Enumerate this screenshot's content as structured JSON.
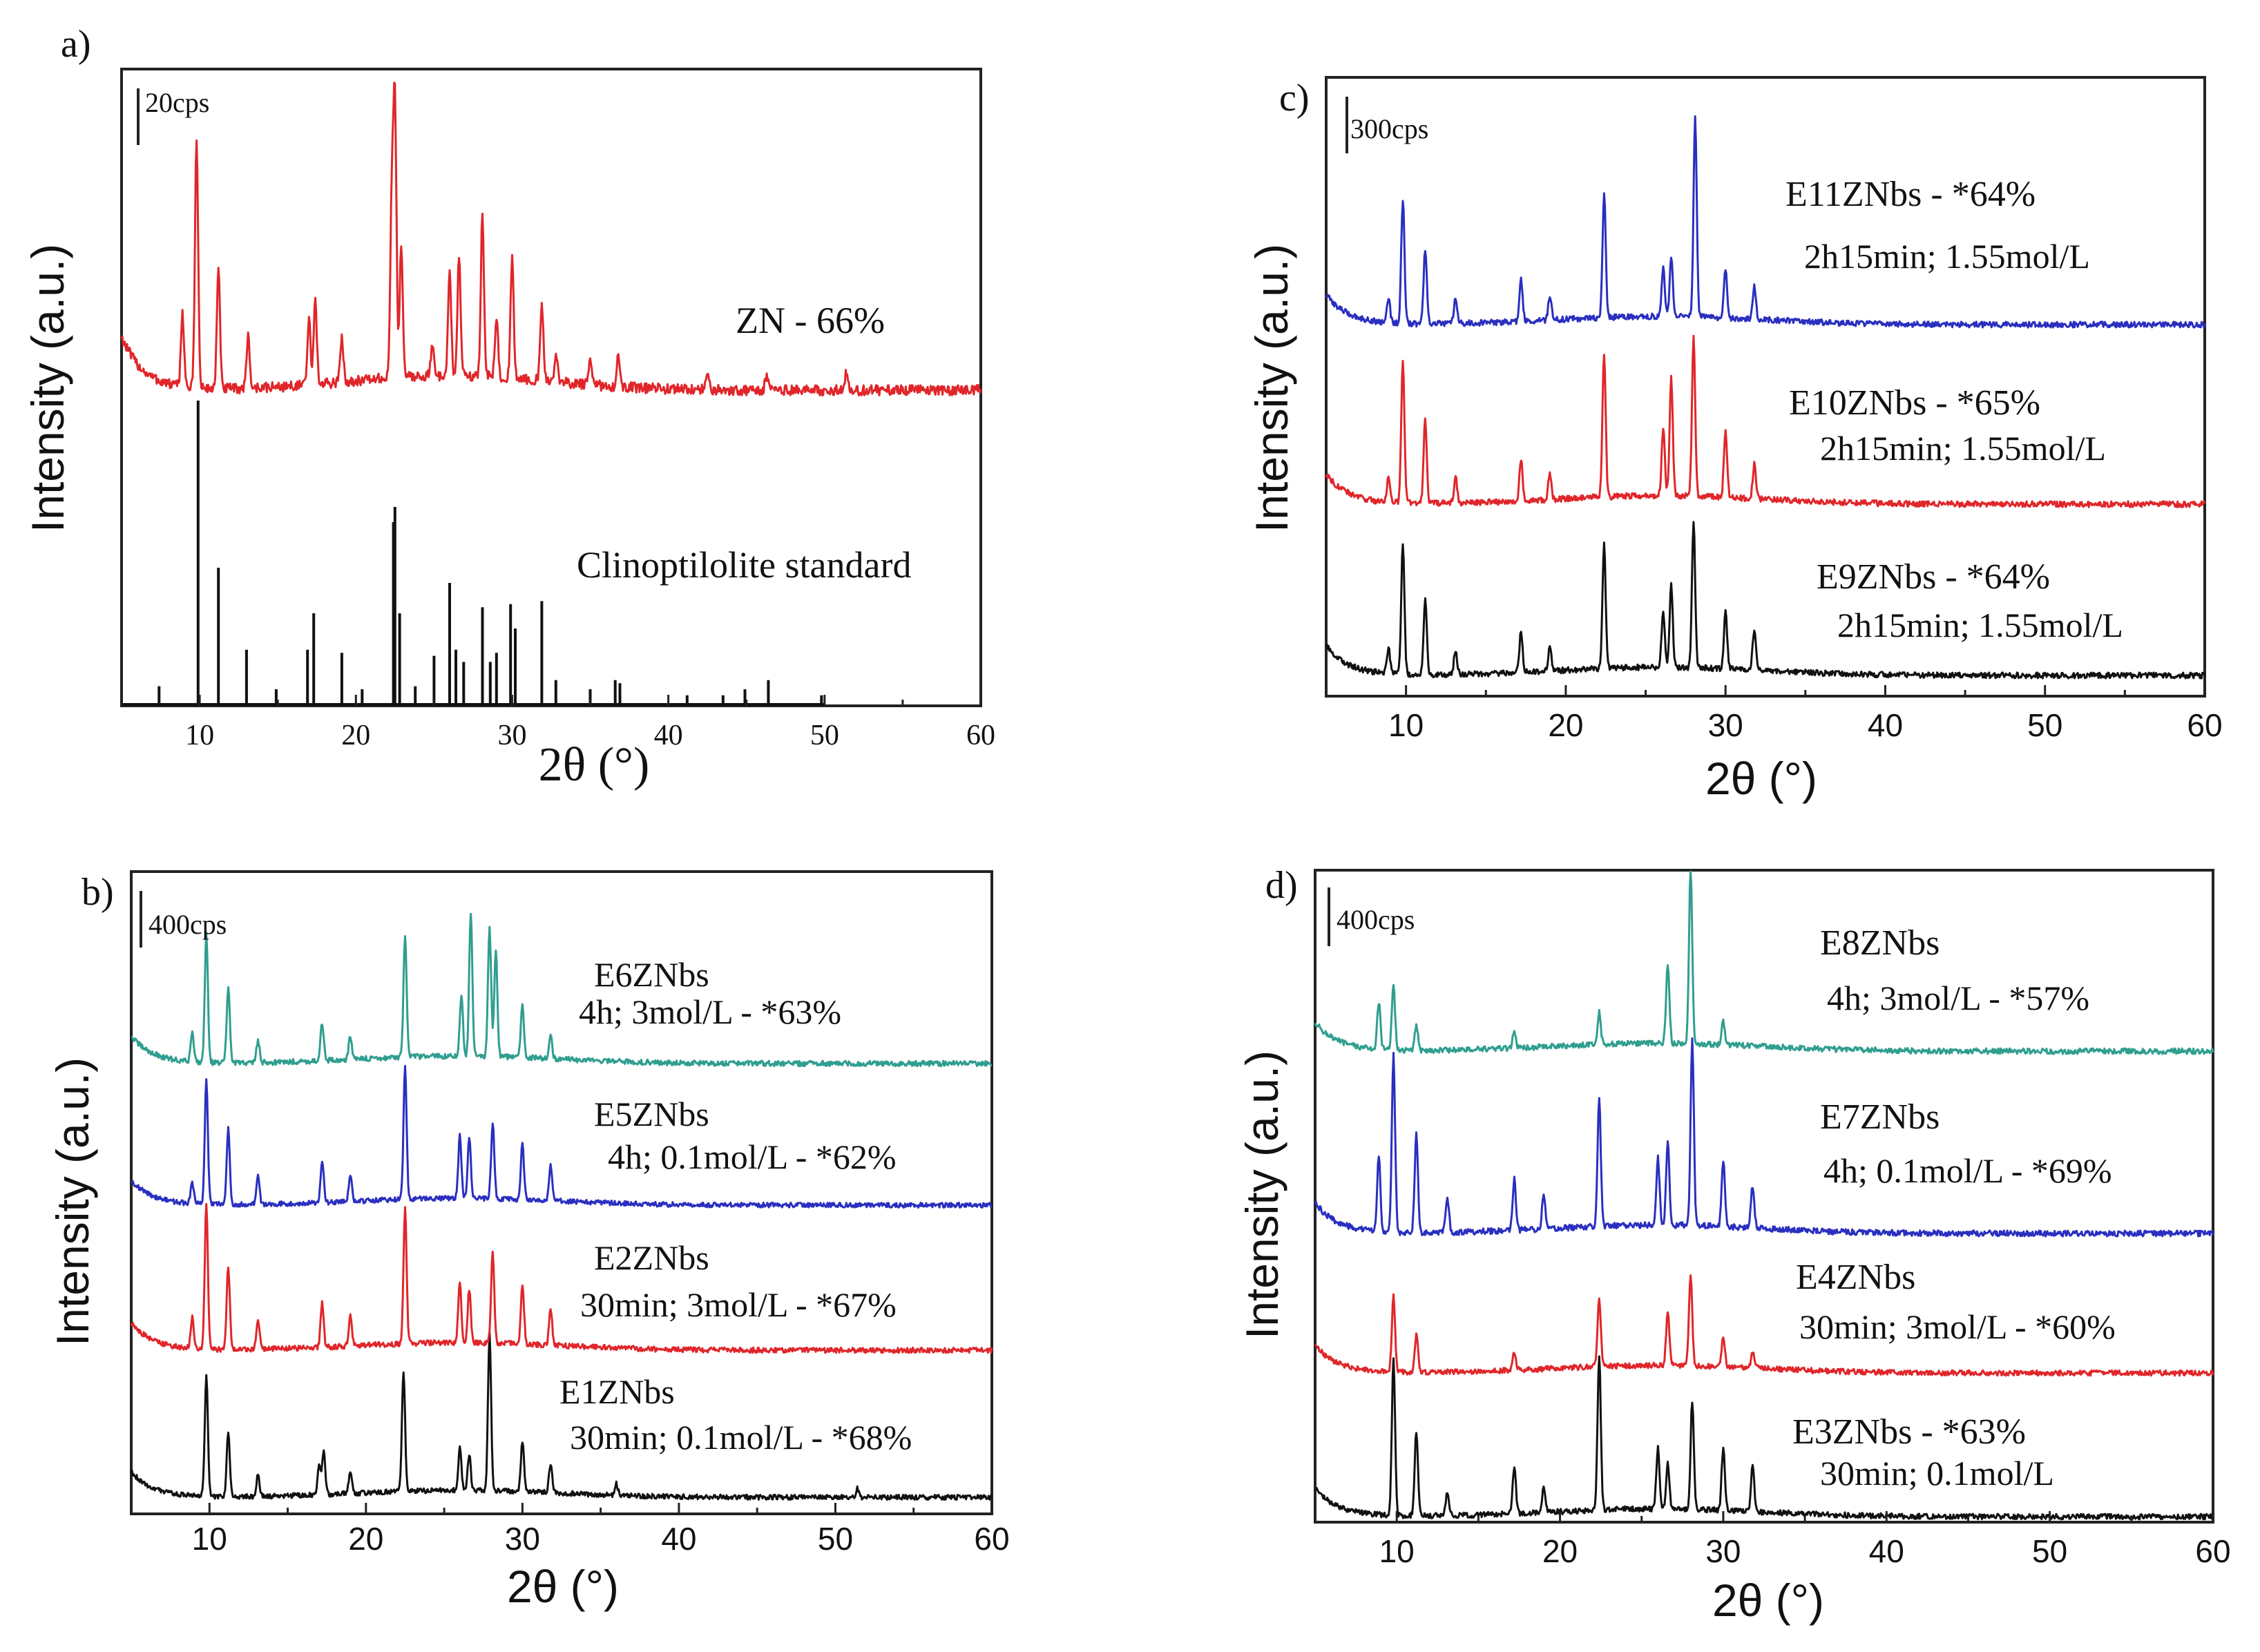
{
  "chart_data": [
    {
      "panel": "a)",
      "type": "line",
      "xlabel": "2θ (°)",
      "ylabel": "Intensity (a.u.)",
      "xlim": [
        5,
        60
      ],
      "xticks": [
        10,
        20,
        30,
        40,
        50,
        60
      ],
      "scale_label": "20cps",
      "series": [
        {
          "name": "ZN",
          "label": "ZN - 66%",
          "sublabel": "",
          "color": "#e0262a",
          "style": "pattern",
          "peaks": [
            [
              8.9,
              0.25
            ],
            [
              9.8,
              0.85
            ],
            [
              11.2,
              0.4
            ],
            [
              13.1,
              0.18
            ],
            [
              17.0,
              0.22
            ],
            [
              17.4,
              0.28
            ],
            [
              19.1,
              0.15
            ],
            [
              22.3,
              0.6
            ],
            [
              22.5,
              0.9
            ],
            [
              22.9,
              0.45
            ],
            [
              24.9,
              0.1
            ],
            [
              26.0,
              0.35
            ],
            [
              26.6,
              0.4
            ],
            [
              28.1,
              0.55
            ],
            [
              29.0,
              0.2
            ],
            [
              30.0,
              0.4
            ],
            [
              31.9,
              0.25
            ],
            [
              32.8,
              0.1
            ],
            [
              35.0,
              0.08
            ],
            [
              36.8,
              0.1
            ],
            [
              42.5,
              0.05
            ],
            [
              46.3,
              0.05
            ],
            [
              51.4,
              0.06
            ]
          ]
        },
        {
          "name": "Clinoptilolite standard",
          "label": "Clinoptilolite standard",
          "sublabel": "",
          "color": "#111111",
          "style": "stick",
          "peaks": [
            [
              7.4,
              0.06
            ],
            [
              9.9,
              1.0
            ],
            [
              11.2,
              0.45
            ],
            [
              13.0,
              0.18
            ],
            [
              14.9,
              0.05
            ],
            [
              16.9,
              0.18
            ],
            [
              17.3,
              0.3
            ],
            [
              19.1,
              0.17
            ],
            [
              20.4,
              0.05
            ],
            [
              22.4,
              0.6
            ],
            [
              22.5,
              0.65
            ],
            [
              22.8,
              0.3
            ],
            [
              23.8,
              0.06
            ],
            [
              25.0,
              0.16
            ],
            [
              26.0,
              0.4
            ],
            [
              26.4,
              0.18
            ],
            [
              26.9,
              0.14
            ],
            [
              28.1,
              0.32
            ],
            [
              28.6,
              0.14
            ],
            [
              29.0,
              0.17
            ],
            [
              29.9,
              0.33
            ],
            [
              30.2,
              0.25
            ],
            [
              31.9,
              0.34
            ],
            [
              32.8,
              0.08
            ],
            [
              35.0,
              0.05
            ],
            [
              36.6,
              0.08
            ],
            [
              36.9,
              0.07
            ],
            [
              41.2,
              0.03
            ],
            [
              43.5,
              0.03
            ],
            [
              44.9,
              0.05
            ],
            [
              46.4,
              0.08
            ],
            [
              49.8,
              0.03
            ]
          ]
        }
      ]
    },
    {
      "panel": "b)",
      "type": "line",
      "xlabel": "2θ (°)",
      "ylabel": "Intensity (a.u.)",
      "xlim": [
        5,
        60
      ],
      "xticks": [
        10,
        20,
        30,
        40,
        50,
        60
      ],
      "scale_label": "400cps",
      "series": [
        {
          "name": "E6ZNbs",
          "label": "E6ZNbs",
          "sublabel": "4h; 3mol/L - *63%",
          "color": "#2f9e8f",
          "style": "pattern",
          "peaks": [
            [
              8.9,
              0.2
            ],
            [
              9.8,
              0.85
            ],
            [
              11.2,
              0.5
            ],
            [
              13.1,
              0.15
            ],
            [
              17.2,
              0.25
            ],
            [
              19.0,
              0.15
            ],
            [
              22.5,
              0.8
            ],
            [
              26.1,
              0.4
            ],
            [
              26.7,
              0.95
            ],
            [
              27.9,
              0.85
            ],
            [
              28.3,
              0.7
            ],
            [
              30.0,
              0.35
            ],
            [
              31.8,
              0.15
            ]
          ]
        },
        {
          "name": "E5ZNbs",
          "label": "E5ZNbs",
          "sublabel": "4h; 0.1mol/L - *62%",
          "color": "#2a2fc0",
          "style": "pattern",
          "peaks": [
            [
              8.9,
              0.15
            ],
            [
              9.8,
              0.9
            ],
            [
              11.2,
              0.55
            ],
            [
              13.1,
              0.2
            ],
            [
              17.2,
              0.3
            ],
            [
              19.0,
              0.2
            ],
            [
              22.5,
              0.95
            ],
            [
              26.0,
              0.45
            ],
            [
              26.6,
              0.45
            ],
            [
              28.1,
              0.55
            ],
            [
              30.0,
              0.4
            ],
            [
              31.8,
              0.25
            ]
          ]
        },
        {
          "name": "E2ZNbs",
          "label": "E2ZNbs",
          "sublabel": "30min; 3mol/L - *67%",
          "color": "#e0262a",
          "style": "pattern",
          "peaks": [
            [
              8.9,
              0.2
            ],
            [
              9.8,
              0.95
            ],
            [
              11.2,
              0.55
            ],
            [
              13.1,
              0.2
            ],
            [
              17.2,
              0.3
            ],
            [
              19.0,
              0.2
            ],
            [
              22.5,
              0.9
            ],
            [
              26.0,
              0.4
            ],
            [
              26.6,
              0.35
            ],
            [
              28.1,
              0.6
            ],
            [
              30.0,
              0.4
            ],
            [
              31.8,
              0.25
            ]
          ]
        },
        {
          "name": "E1ZNbs",
          "label": "E1ZNbs",
          "sublabel": "30min; 0.1mol/L - *68%",
          "color": "#111111",
          "style": "pattern",
          "peaks": [
            [
              9.8,
              0.85
            ],
            [
              11.2,
              0.45
            ],
            [
              13.1,
              0.15
            ],
            [
              17.0,
              0.2
            ],
            [
              17.3,
              0.3
            ],
            [
              19.0,
              0.15
            ],
            [
              22.4,
              0.85
            ],
            [
              26.0,
              0.3
            ],
            [
              26.6,
              0.25
            ],
            [
              27.9,
              1.1
            ],
            [
              30.0,
              0.35
            ],
            [
              31.8,
              0.2
            ],
            [
              36.0,
              0.08
            ],
            [
              51.4,
              0.06
            ]
          ]
        }
      ]
    },
    {
      "panel": "c)",
      "type": "line",
      "xlabel": "2θ (°)",
      "ylabel": "Intensity (a.u.)",
      "xlim": [
        5,
        60
      ],
      "xticks": [
        10,
        20,
        30,
        40,
        50,
        60
      ],
      "scale_label": "300cps",
      "series": [
        {
          "name": "E11ZNbs",
          "label": "E11ZNbs - *64%",
          "sublabel": "2h15min; 1.55mol/L",
          "color": "#2a2fc0",
          "style": "pattern",
          "peaks": [
            [
              8.9,
              0.15
            ],
            [
              9.8,
              0.75
            ],
            [
              11.2,
              0.45
            ],
            [
              13.1,
              0.15
            ],
            [
              17.2,
              0.25
            ],
            [
              19.0,
              0.15
            ],
            [
              22.4,
              0.75
            ],
            [
              26.1,
              0.3
            ],
            [
              26.6,
              0.35
            ],
            [
              28.1,
              1.2
            ],
            [
              30.0,
              0.3
            ],
            [
              31.8,
              0.2
            ]
          ]
        },
        {
          "name": "E10ZNbs",
          "label": "E10ZNbs - *65%",
          "sublabel": "2h15min; 1.55mol/L",
          "color": "#e0262a",
          "style": "pattern",
          "peaks": [
            [
              8.9,
              0.15
            ],
            [
              9.8,
              0.85
            ],
            [
              11.2,
              0.5
            ],
            [
              13.1,
              0.15
            ],
            [
              17.2,
              0.25
            ],
            [
              19.0,
              0.15
            ],
            [
              22.4,
              0.85
            ],
            [
              26.1,
              0.4
            ],
            [
              26.6,
              0.7
            ],
            [
              28.0,
              0.95
            ],
            [
              30.0,
              0.4
            ],
            [
              31.8,
              0.2
            ]
          ]
        },
        {
          "name": "E9ZNbs",
          "label": "E9ZNbs - *64%",
          "sublabel": "2h15min; 1.55mol/L",
          "color": "#111111",
          "style": "pattern",
          "peaks": [
            [
              8.9,
              0.15
            ],
            [
              9.8,
              0.8
            ],
            [
              11.2,
              0.45
            ],
            [
              13.1,
              0.15
            ],
            [
              17.2,
              0.25
            ],
            [
              19.0,
              0.15
            ],
            [
              22.4,
              0.75
            ],
            [
              26.1,
              0.35
            ],
            [
              26.6,
              0.5
            ],
            [
              28.0,
              0.9
            ],
            [
              30.0,
              0.35
            ],
            [
              31.8,
              0.25
            ]
          ]
        }
      ]
    },
    {
      "panel": "d)",
      "type": "line",
      "xlabel": "2θ (°)",
      "ylabel": "Intensity (a.u.)",
      "xlim": [
        5,
        60
      ],
      "xticks": [
        10,
        20,
        30,
        40,
        50,
        60
      ],
      "scale_label": "400cps",
      "series": [
        {
          "name": "E8ZNbs",
          "label": "E8ZNbs",
          "sublabel": "4h; 3mol/L - *57%",
          "color": "#2f9e8f",
          "style": "pattern",
          "peaks": [
            [
              8.9,
              0.3
            ],
            [
              9.8,
              0.4
            ],
            [
              11.2,
              0.15
            ],
            [
              17.2,
              0.1
            ],
            [
              22.4,
              0.2
            ],
            [
              26.6,
              0.5
            ],
            [
              28.0,
              1.1
            ],
            [
              30.0,
              0.15
            ]
          ]
        },
        {
          "name": "E7ZNbs",
          "label": "E7ZNbs",
          "sublabel": "4h; 0.1mol/L - *69%",
          "color": "#2a2fc0",
          "style": "pattern",
          "peaks": [
            [
              8.9,
              0.45
            ],
            [
              9.8,
              1.05
            ],
            [
              11.2,
              0.6
            ],
            [
              13.1,
              0.2
            ],
            [
              17.2,
              0.3
            ],
            [
              19.0,
              0.2
            ],
            [
              22.4,
              0.75
            ],
            [
              26.0,
              0.4
            ],
            [
              26.6,
              0.5
            ],
            [
              28.1,
              1.1
            ],
            [
              30.0,
              0.4
            ],
            [
              31.8,
              0.25
            ]
          ]
        },
        {
          "name": "E4ZNbs",
          "label": "E4ZNbs",
          "sublabel": "30min; 3mol/L - *60%",
          "color": "#e0262a",
          "style": "pattern",
          "peaks": [
            [
              9.8,
              0.5
            ],
            [
              11.2,
              0.25
            ],
            [
              17.2,
              0.12
            ],
            [
              22.4,
              0.45
            ],
            [
              26.6,
              0.35
            ],
            [
              28.0,
              0.6
            ],
            [
              30.0,
              0.2
            ],
            [
              31.8,
              0.1
            ]
          ]
        },
        {
          "name": "E3ZNbs",
          "label": "E3ZNbs - *63%",
          "sublabel": "30min; 0.1mol/L",
          "color": "#111111",
          "style": "pattern",
          "peaks": [
            [
              9.8,
              1.0
            ],
            [
              11.2,
              0.55
            ],
            [
              13.1,
              0.15
            ],
            [
              17.2,
              0.3
            ],
            [
              19.0,
              0.15
            ],
            [
              22.4,
              1.0
            ],
            [
              26.0,
              0.4
            ],
            [
              26.6,
              0.3
            ],
            [
              28.1,
              0.7
            ],
            [
              30.0,
              0.4
            ],
            [
              31.8,
              0.3
            ]
          ]
        }
      ]
    }
  ]
}
